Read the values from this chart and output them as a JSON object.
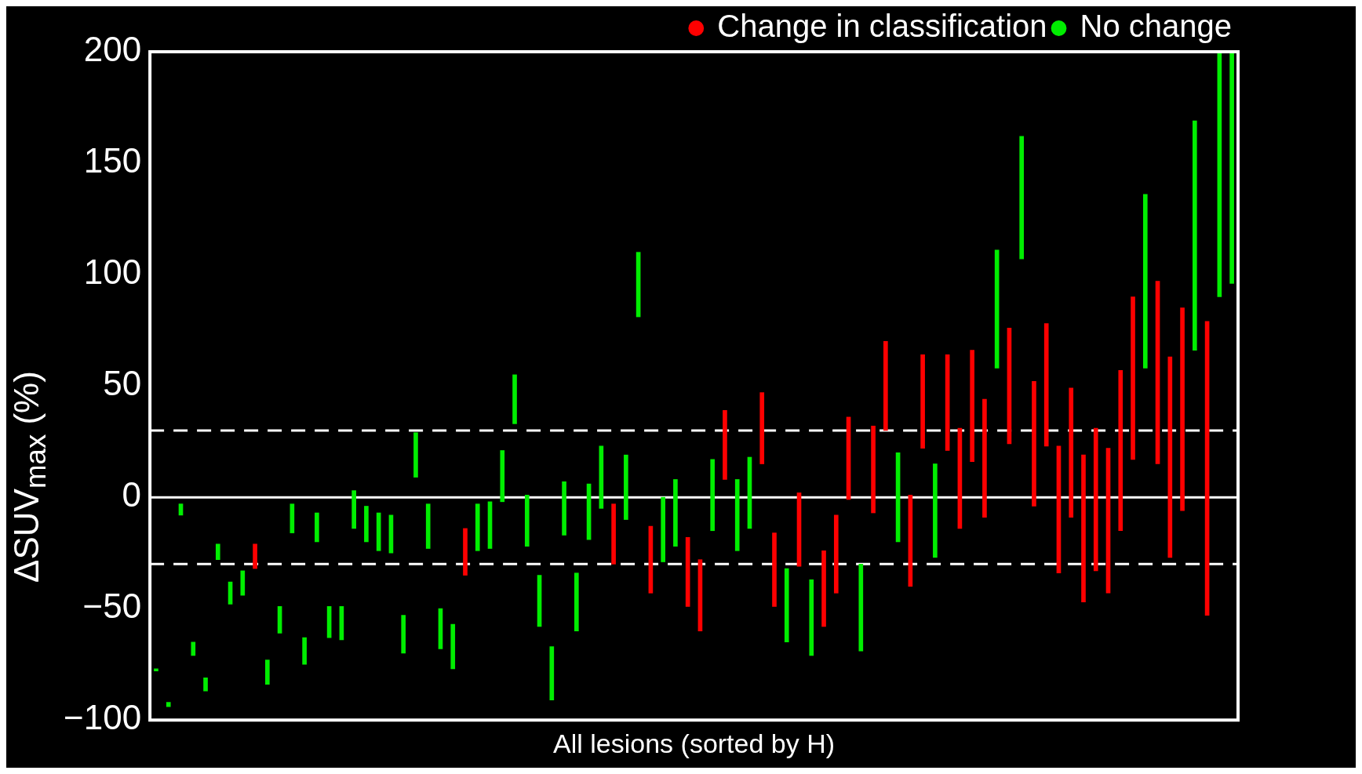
{
  "chart_data": {
    "type": "bar",
    "xlabel": "All lesions (sorted by H)",
    "ylabel": "ΔSUV$_{max}$ (%)",
    "categories": [
      null,
      null,
      null,
      null,
      null,
      null,
      null,
      null,
      null,
      null,
      null,
      null,
      null,
      null,
      null,
      null,
      null,
      null,
      null,
      null,
      null,
      null,
      null,
      null,
      null,
      null,
      null,
      null,
      null,
      null,
      null,
      null,
      null,
      null,
      null,
      null,
      null,
      null,
      null,
      null,
      null,
      null,
      null,
      null,
      null,
      null,
      null,
      null,
      null,
      null,
      null,
      null,
      null,
      null,
      null,
      null,
      null,
      null,
      null,
      null,
      null,
      null,
      null,
      null,
      null,
      null,
      null,
      null,
      null,
      null,
      null,
      null,
      null,
      null,
      null,
      null,
      null,
      null,
      null,
      null,
      null,
      null,
      null,
      null,
      null,
      null,
      null,
      null
    ],
    "series": [
      {
        "name": "Change in classification",
        "color": "#ff0000",
        "base": [
          null,
          null,
          null,
          null,
          null,
          null,
          null,
          null,
          -32,
          null,
          null,
          null,
          null,
          null,
          null,
          null,
          null,
          null,
          null,
          null,
          null,
          null,
          null,
          null,
          null,
          -35,
          null,
          null,
          null,
          null,
          null,
          null,
          null,
          null,
          null,
          null,
          null,
          -30,
          null,
          null,
          -43,
          null,
          null,
          -49,
          -60,
          null,
          8,
          null,
          null,
          15,
          -49,
          null,
          -31,
          null,
          -58,
          -43,
          -1,
          null,
          -7,
          30,
          null,
          -40,
          22,
          null,
          21,
          -14,
          16,
          -9,
          null,
          24,
          null,
          -4,
          23,
          -34,
          -9,
          -47,
          -33,
          -43,
          -15,
          17,
          null,
          15,
          -27,
          -6,
          null,
          -53,
          null,
          null
        ],
        "values": [
          null,
          null,
          null,
          null,
          null,
          null,
          null,
          null,
          11,
          null,
          null,
          null,
          null,
          null,
          null,
          null,
          null,
          null,
          null,
          null,
          null,
          null,
          null,
          null,
          null,
          21,
          null,
          null,
          null,
          null,
          null,
          null,
          null,
          null,
          null,
          null,
          null,
          27,
          null,
          null,
          30,
          null,
          null,
          31,
          32,
          null,
          31,
          null,
          null,
          32,
          33,
          null,
          33,
          null,
          34,
          35,
          37,
          null,
          39,
          40,
          null,
          41,
          42,
          null,
          43,
          45,
          50,
          53,
          null,
          52,
          null,
          56,
          55,
          57,
          58,
          66,
          64,
          65,
          72,
          73,
          null,
          82,
          90,
          91,
          null,
          132,
          null,
          null
        ]
      },
      {
        "name": "No change",
        "color": "#00ee00",
        "base": [
          -78,
          -94,
          -8,
          -71,
          -87,
          -28,
          -48,
          -44,
          null,
          -84,
          -61,
          -16,
          -75,
          -20,
          -63,
          -64,
          -14,
          -20,
          -24,
          -25,
          -70,
          9,
          -23,
          -68,
          -77,
          null,
          -24,
          -23,
          -2,
          33,
          -22,
          -58,
          -91,
          -17,
          -60,
          -19,
          -5,
          null,
          -10,
          81,
          null,
          -29,
          -22,
          null,
          null,
          -15,
          null,
          -24,
          -14,
          null,
          null,
          -65,
          null,
          -71,
          null,
          null,
          null,
          -69,
          null,
          null,
          -20,
          null,
          null,
          -27,
          null,
          null,
          null,
          null,
          58,
          null,
          107,
          null,
          null,
          null,
          null,
          null,
          null,
          null,
          null,
          null,
          58,
          null,
          null,
          null,
          66,
          null,
          90,
          96
        ],
        "values": [
          1,
          2,
          5,
          6,
          6,
          7,
          10,
          11,
          null,
          11,
          12,
          13,
          12,
          13,
          14,
          15,
          17,
          16,
          17,
          17,
          17,
          20,
          20,
          18,
          20,
          null,
          21,
          21,
          23,
          22,
          23,
          23,
          24,
          24,
          26,
          25,
          28,
          null,
          29,
          29,
          null,
          29,
          30,
          null,
          null,
          32,
          null,
          32,
          32,
          null,
          null,
          33,
          null,
          34,
          null,
          null,
          null,
          39,
          null,
          null,
          40,
          null,
          null,
          42,
          null,
          null,
          null,
          null,
          53,
          null,
          55,
          null,
          null,
          null,
          null,
          null,
          null,
          null,
          null,
          null,
          78,
          null,
          null,
          null,
          103,
          null,
          110,
          104
        ]
      }
    ],
    "ylim": [
      -100,
      200
    ],
    "yticks": [
      -100,
      -50,
      0,
      50,
      100,
      150,
      200
    ],
    "ref_lines": [
      {
        "axis": "y",
        "value": 0,
        "color": "#ffffff",
        "line_style": "solid"
      },
      {
        "axis": "y",
        "value": 30,
        "color": "#ffffff",
        "line_style": "dashed"
      },
      {
        "axis": "y",
        "value": -30,
        "color": "#ffffff",
        "line_style": "dashed"
      }
    ],
    "legend": "top right",
    "tick_labels": "y",
    "grid": false
  }
}
